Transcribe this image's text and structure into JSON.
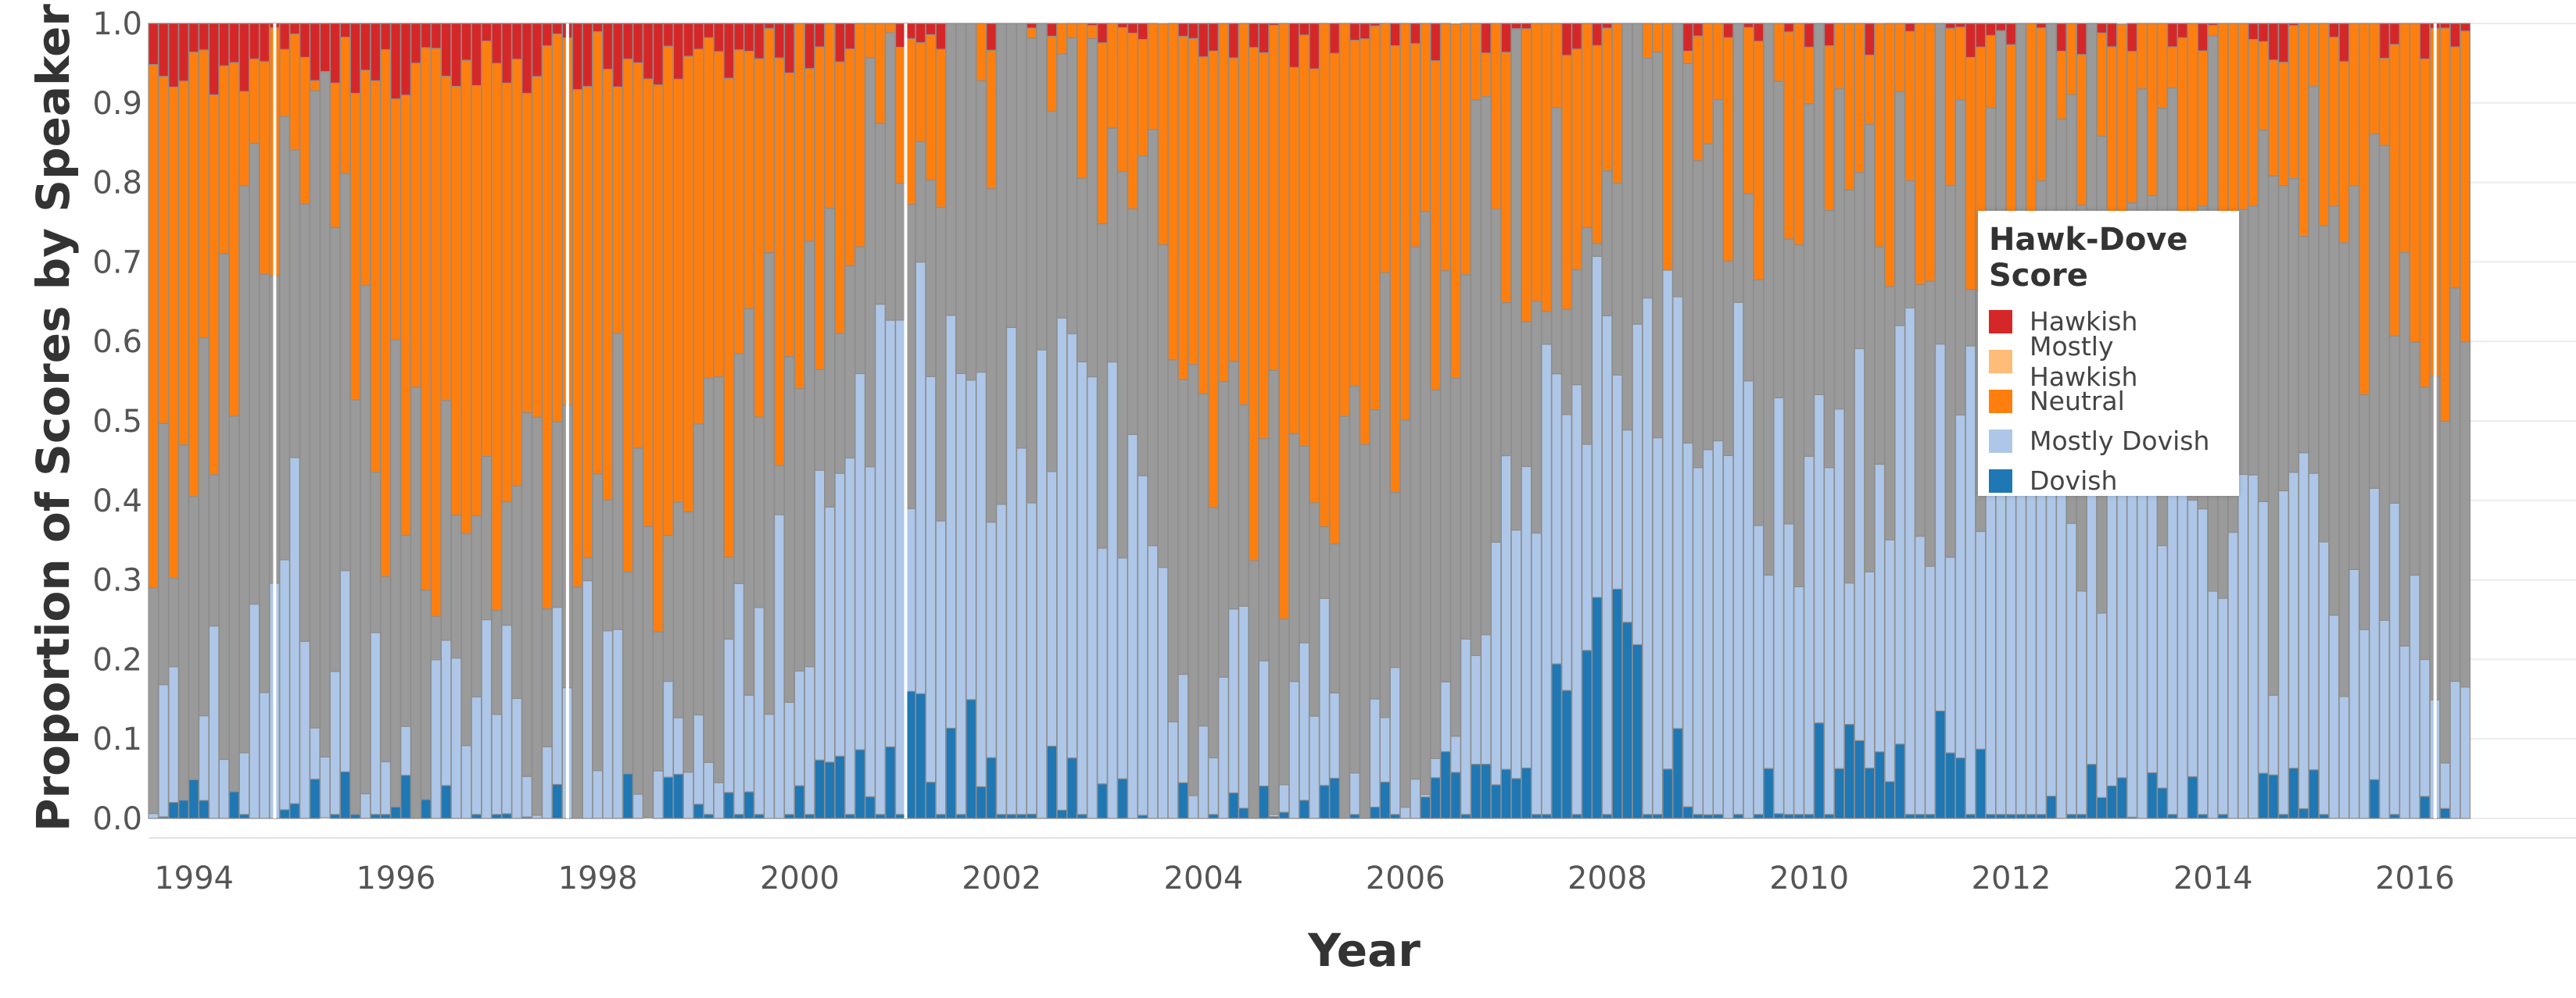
{
  "chart_data": {
    "type": "bar",
    "stacked": true,
    "xlabel": "Year",
    "ylabel": "Proportion of Scores by Speaker",
    "ylim": [
      0,
      1.0
    ],
    "yticks": [
      "0.0",
      "0.1",
      "0.2",
      "0.3",
      "0.4",
      "0.5",
      "0.6",
      "0.7",
      "0.8",
      "0.9",
      "1.0"
    ],
    "xticks": [
      "1994",
      "1996",
      "1998",
      "2000",
      "2002",
      "2004",
      "2006",
      "2008",
      "2010",
      "2012",
      "2014",
      "2016"
    ],
    "x_range": [
      1993.55,
      2016.55
    ],
    "grid": true,
    "legend_position": "right",
    "legend": {
      "title": "Hawk-Dove Score",
      "items": [
        {
          "name": "Hawkish",
          "color": "#d62728"
        },
        {
          "name": "Mostly Hawkish",
          "color": "#ffbb78"
        },
        {
          "name": "Neutral",
          "color": "#ff7f0e"
        },
        {
          "name": "Mostly Dovish",
          "color": "#aec7e8"
        },
        {
          "name": "Dovish",
          "color": "#1f77b4"
        }
      ]
    },
    "bar_count": 230,
    "note_series_unlabeled_gray": "#9a9a9a",
    "series_order_bottom_to_top": [
      "Dovish",
      "Mostly Dovish",
      "unlabeled",
      "Neutral",
      "Mostly Hawkish",
      "Hawkish"
    ],
    "stack_boundaries_by_year": [
      {
        "year": 1994,
        "dovish": 0.01,
        "mostly_dovish": 0.08,
        "gray": 0.4,
        "neutral": 0.93,
        "hawkish": 1.0
      },
      {
        "year": 1995,
        "dovish": 0.03,
        "mostly_dovish": 0.3,
        "gray": 0.88,
        "neutral": 0.97,
        "hawkish": 1.0
      },
      {
        "year": 1996,
        "dovish": 0.01,
        "mostly_dovish": 0.05,
        "gray": 0.45,
        "neutral": 0.93,
        "hawkish": 1.0
      },
      {
        "year": 1997,
        "dovish": 0.01,
        "mostly_dovish": 0.08,
        "gray": 0.4,
        "neutral": 0.95,
        "hawkish": 1.0
      },
      {
        "year": 1998,
        "dovish": 0.02,
        "mostly_dovish": 0.15,
        "gray": 0.45,
        "neutral": 0.95,
        "hawkish": 1.0
      },
      {
        "year": 1999,
        "dovish": 0.01,
        "mostly_dovish": 0.05,
        "gray": 0.35,
        "neutral": 0.94,
        "hawkish": 1.0
      },
      {
        "year": 2000,
        "dovish": 0.03,
        "mostly_dovish": 0.3,
        "gray": 0.65,
        "neutral": 0.98,
        "hawkish": 1.0
      },
      {
        "year": 2001,
        "dovish": 0.12,
        "mostly_dovish": 0.55,
        "gray": 0.93,
        "neutral": 1.0,
        "hawkish": 1.0
      },
      {
        "year": 2002,
        "dovish": 0.1,
        "mostly_dovish": 0.5,
        "gray": 0.96,
        "neutral": 1.0,
        "hawkish": 1.0
      },
      {
        "year": 2003,
        "dovish": 0.02,
        "mostly_dovish": 0.5,
        "gray": 0.85,
        "neutral": 1.0,
        "hawkish": 1.0
      },
      {
        "year": 2004,
        "dovish": 0.01,
        "mostly_dovish": 0.15,
        "gray": 0.55,
        "neutral": 0.99,
        "hawkish": 1.0
      },
      {
        "year": 2005,
        "dovish": 0.01,
        "mostly_dovish": 0.1,
        "gray": 0.4,
        "neutral": 0.98,
        "hawkish": 1.0
      },
      {
        "year": 2006,
        "dovish": 0.01,
        "mostly_dovish": 0.15,
        "gray": 0.6,
        "neutral": 0.99,
        "hawkish": 1.0
      },
      {
        "year": 2007,
        "dovish": 0.08,
        "mostly_dovish": 0.4,
        "gray": 0.8,
        "neutral": 0.99,
        "hawkish": 1.0
      },
      {
        "year": 2008,
        "dovish": 0.28,
        "mostly_dovish": 0.6,
        "gray": 0.85,
        "neutral": 0.99,
        "hawkish": 1.0
      },
      {
        "year": 2009,
        "dovish": 0.03,
        "mostly_dovish": 0.5,
        "gray": 0.88,
        "neutral": 1.0,
        "hawkish": 1.0
      },
      {
        "year": 2010,
        "dovish": 0.08,
        "mostly_dovish": 0.45,
        "gray": 0.85,
        "neutral": 1.0,
        "hawkish": 1.0
      },
      {
        "year": 2011,
        "dovish": 0.1,
        "mostly_dovish": 0.5,
        "gray": 0.85,
        "neutral": 1.0,
        "hawkish": 1.0
      },
      {
        "year": 2012,
        "dovish": 0.07,
        "mostly_dovish": 0.45,
        "gray": 0.85,
        "neutral": 0.99,
        "hawkish": 1.0
      },
      {
        "year": 2013,
        "dovish": 0.02,
        "mostly_dovish": 0.38,
        "gray": 0.88,
        "neutral": 1.0,
        "hawkish": 1.0
      },
      {
        "year": 2014,
        "dovish": 0.02,
        "mostly_dovish": 0.3,
        "gray": 0.8,
        "neutral": 0.99,
        "hawkish": 1.0
      },
      {
        "year": 2015,
        "dovish": 0.02,
        "mostly_dovish": 0.35,
        "gray": 0.8,
        "neutral": 0.99,
        "hawkish": 1.0
      },
      {
        "year": 2016,
        "dovish": 0.02,
        "mostly_dovish": 0.2,
        "gray": 0.6,
        "neutral": 0.97,
        "hawkish": 1.0
      }
    ]
  }
}
